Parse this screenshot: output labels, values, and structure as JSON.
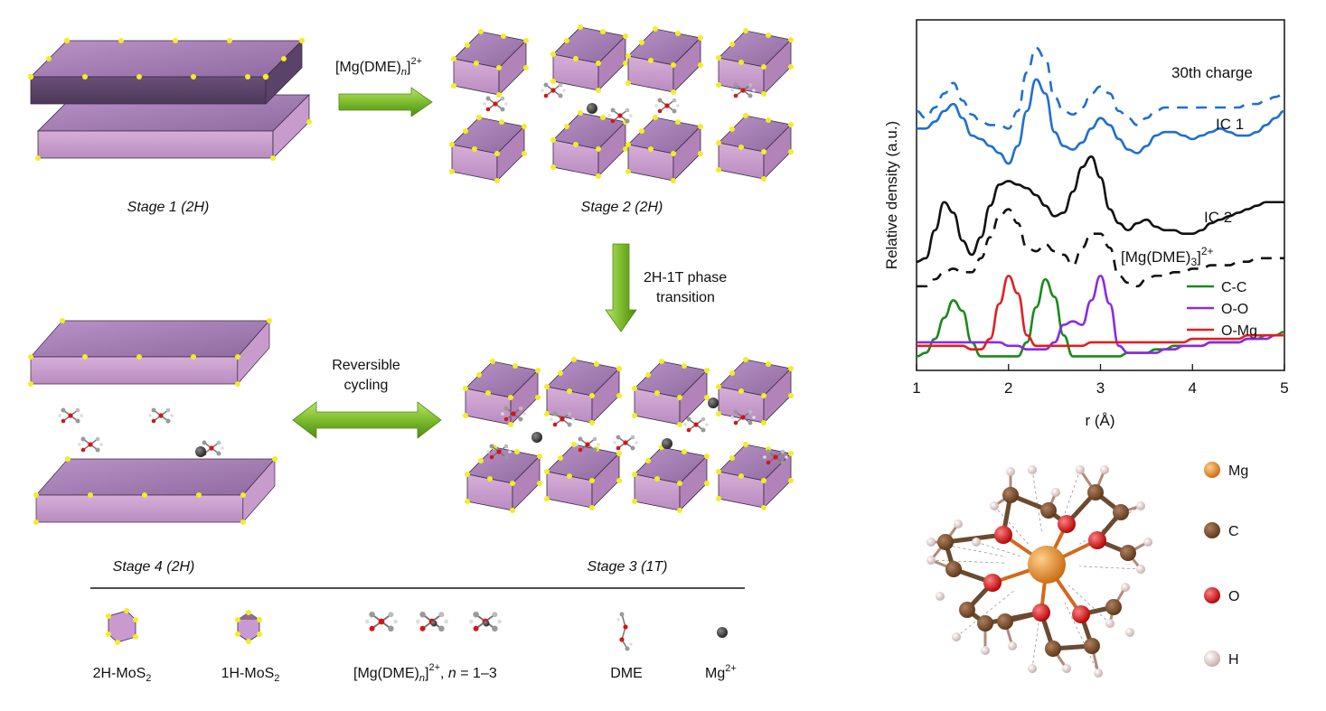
{
  "diagram": {
    "arrow1_label_main": "[Mg(DME)",
    "arrow1_label_sub": "n",
    "arrow1_label_sup": "2+",
    "arrow2_label_line1": "2H-1T phase",
    "arrow2_label_line2": "transition",
    "arrow3_label_line1": "Reversible",
    "arrow3_label_line2": "cycling",
    "stage1": "Stage 1 (2H)",
    "stage2": "Stage 2 (2H)",
    "stage3": "Stage 3 (1T)",
    "stage4": "Stage 4 (2H)"
  },
  "legend": {
    "mos2_2h_main": "2H-MoS",
    "mos2_2h_sub": "2",
    "mos2_1h_main": "1H-MoS",
    "mos2_1h_sub": "2",
    "complex_main": "[Mg(DME)",
    "complex_sub": "n",
    "complex_sup": "2+",
    "complex_tail": ", ",
    "complex_n": "n",
    "complex_range": " = 1–3",
    "dme": "DME",
    "mg_main": "Mg",
    "mg_sup": "2+"
  },
  "chart_data": {
    "type": "line",
    "xlabel": "r (Å)",
    "ylabel": "Relative density (a.u.)",
    "xlim": [
      1,
      5
    ],
    "xticks": [
      "1",
      "2",
      "3",
      "4",
      "5"
    ],
    "grid": false,
    "series": [
      {
        "name": "30th charge",
        "style": "dashed",
        "color": "#1f6fd1",
        "x": [
          1.0,
          1.1,
          1.2,
          1.3,
          1.4,
          1.5,
          1.6,
          1.7,
          1.8,
          1.9,
          2.0,
          2.1,
          2.2,
          2.3,
          2.4,
          2.5,
          2.6,
          2.7,
          2.8,
          2.9,
          3.0,
          3.1,
          3.2,
          3.3,
          3.4,
          3.5,
          3.6,
          3.7,
          3.8,
          3.9,
          4.0,
          4.1,
          4.2,
          4.3,
          4.4,
          4.5,
          4.6,
          4.7,
          4.8,
          4.9,
          5.0
        ],
        "y": [
          0.74,
          0.72,
          0.75,
          0.79,
          0.82,
          0.77,
          0.73,
          0.71,
          0.7,
          0.7,
          0.69,
          0.74,
          0.85,
          0.92,
          0.89,
          0.78,
          0.74,
          0.73,
          0.75,
          0.79,
          0.81,
          0.79,
          0.74,
          0.72,
          0.7,
          0.72,
          0.74,
          0.75,
          0.75,
          0.75,
          0.75,
          0.75,
          0.75,
          0.75,
          0.75,
          0.75,
          0.76,
          0.76,
          0.77,
          0.78,
          0.79
        ]
      },
      {
        "name": "IC 1",
        "style": "solid",
        "color": "#1f6fd1",
        "x": [
          1.0,
          1.1,
          1.2,
          1.3,
          1.4,
          1.5,
          1.6,
          1.7,
          1.8,
          1.9,
          2.0,
          2.1,
          2.2,
          2.3,
          2.4,
          2.5,
          2.6,
          2.7,
          2.8,
          2.9,
          3.0,
          3.1,
          3.2,
          3.3,
          3.4,
          3.5,
          3.6,
          3.7,
          3.8,
          3.9,
          4.0,
          4.1,
          4.2,
          4.3,
          4.4,
          4.5,
          4.6,
          4.7,
          4.8,
          4.9,
          5.0
        ],
        "y": [
          0.69,
          0.69,
          0.71,
          0.74,
          0.76,
          0.72,
          0.67,
          0.66,
          0.64,
          0.62,
          0.59,
          0.64,
          0.74,
          0.83,
          0.79,
          0.68,
          0.64,
          0.63,
          0.65,
          0.69,
          0.72,
          0.7,
          0.66,
          0.63,
          0.62,
          0.64,
          0.67,
          0.68,
          0.68,
          0.67,
          0.66,
          0.67,
          0.68,
          0.69,
          0.68,
          0.67,
          0.67,
          0.68,
          0.7,
          0.72,
          0.74
        ]
      },
      {
        "name": "IC 2",
        "style": "solid",
        "color": "#111111",
        "x": [
          1.0,
          1.1,
          1.2,
          1.3,
          1.4,
          1.5,
          1.6,
          1.7,
          1.8,
          1.9,
          2.0,
          2.1,
          2.2,
          2.3,
          2.4,
          2.5,
          2.6,
          2.7,
          2.8,
          2.9,
          3.0,
          3.1,
          3.2,
          3.3,
          3.4,
          3.5,
          3.6,
          3.7,
          3.8,
          3.9,
          4.0,
          4.1,
          4.2,
          4.3,
          4.4,
          4.5,
          4.6,
          4.7,
          4.8,
          4.9,
          5.0
        ],
        "y": [
          0.31,
          0.32,
          0.4,
          0.48,
          0.45,
          0.37,
          0.33,
          0.38,
          0.47,
          0.53,
          0.54,
          0.53,
          0.52,
          0.5,
          0.47,
          0.44,
          0.45,
          0.51,
          0.58,
          0.61,
          0.55,
          0.46,
          0.42,
          0.4,
          0.42,
          0.43,
          0.41,
          0.4,
          0.4,
          0.39,
          0.39,
          0.4,
          0.42,
          0.43,
          0.44,
          0.45,
          0.46,
          0.47,
          0.48,
          0.48,
          0.48
        ]
      },
      {
        "name": "[Mg(DME)3]2+",
        "style": "dashed",
        "color": "#111111",
        "x": [
          1.0,
          1.1,
          1.2,
          1.3,
          1.4,
          1.5,
          1.6,
          1.7,
          1.8,
          1.9,
          2.0,
          2.1,
          2.2,
          2.3,
          2.4,
          2.5,
          2.6,
          2.7,
          2.8,
          2.9,
          3.0,
          3.1,
          3.2,
          3.3,
          3.4,
          3.5,
          3.6,
          3.7,
          3.8,
          3.9,
          4.0,
          4.1,
          4.2,
          4.3,
          4.4,
          4.5,
          4.6,
          4.7,
          4.8,
          4.9,
          5.0
        ],
        "y": [
          0.24,
          0.24,
          0.26,
          0.28,
          0.29,
          0.28,
          0.28,
          0.32,
          0.38,
          0.44,
          0.46,
          0.42,
          0.35,
          0.34,
          0.36,
          0.34,
          0.33,
          0.3,
          0.35,
          0.39,
          0.39,
          0.35,
          0.27,
          0.25,
          0.24,
          0.26,
          0.27,
          0.27,
          0.28,
          0.28,
          0.29,
          0.29,
          0.3,
          0.3,
          0.3,
          0.31,
          0.31,
          0.32,
          0.32,
          0.32,
          0.32
        ]
      },
      {
        "name": "C-C",
        "style": "solid",
        "color": "#1a8a1a",
        "x": [
          1.0,
          1.1,
          1.2,
          1.3,
          1.4,
          1.5,
          1.6,
          1.7,
          1.8,
          1.9,
          2.0,
          2.1,
          2.2,
          2.3,
          2.4,
          2.5,
          2.6,
          2.7,
          2.8,
          2.9,
          3.0,
          3.1,
          3.2,
          3.3,
          3.4,
          3.5,
          3.6,
          3.7,
          3.8,
          3.9,
          4.0,
          4.1,
          4.2,
          4.3,
          4.4,
          4.5,
          4.6,
          4.7,
          4.8,
          4.9,
          5.0
        ],
        "y": [
          0.04,
          0.05,
          0.09,
          0.15,
          0.2,
          0.17,
          0.08,
          0.04,
          0.04,
          0.04,
          0.04,
          0.04,
          0.08,
          0.18,
          0.26,
          0.21,
          0.1,
          0.04,
          0.04,
          0.04,
          0.04,
          0.04,
          0.04,
          0.05,
          0.05,
          0.05,
          0.06,
          0.06,
          0.07,
          0.07,
          0.07,
          0.07,
          0.08,
          0.08,
          0.08,
          0.08,
          0.09,
          0.09,
          0.1,
          0.1,
          0.11
        ]
      },
      {
        "name": "O-O",
        "style": "solid",
        "color": "#8a2be2",
        "x": [
          1.0,
          1.1,
          1.2,
          1.3,
          1.4,
          1.5,
          1.6,
          1.7,
          1.8,
          1.9,
          2.0,
          2.1,
          2.2,
          2.3,
          2.4,
          2.5,
          2.6,
          2.7,
          2.8,
          2.9,
          3.0,
          3.1,
          3.2,
          3.3,
          3.4,
          3.5,
          3.6,
          3.7,
          3.8,
          3.9,
          4.0,
          4.1,
          4.2,
          4.3,
          4.4,
          4.5,
          4.6,
          4.7,
          4.8,
          4.9,
          5.0
        ],
        "y": [
          0.08,
          0.08,
          0.08,
          0.08,
          0.08,
          0.08,
          0.08,
          0.08,
          0.08,
          0.08,
          0.07,
          0.07,
          0.06,
          0.06,
          0.06,
          0.08,
          0.13,
          0.14,
          0.13,
          0.2,
          0.27,
          0.19,
          0.07,
          0.05,
          0.05,
          0.05,
          0.05,
          0.06,
          0.06,
          0.07,
          0.07,
          0.07,
          0.08,
          0.08,
          0.08,
          0.08,
          0.09,
          0.09,
          0.09,
          0.1,
          0.1
        ]
      },
      {
        "name": "O-Mg",
        "style": "solid",
        "color": "#e02020",
        "x": [
          1.0,
          1.1,
          1.2,
          1.3,
          1.4,
          1.5,
          1.6,
          1.7,
          1.8,
          1.9,
          2.0,
          2.1,
          2.2,
          2.3,
          2.4,
          2.5,
          2.6,
          2.7,
          2.8,
          2.9,
          3.0,
          3.1,
          3.2,
          3.3,
          3.4,
          3.5,
          3.6,
          3.7,
          3.8,
          3.9,
          4.0,
          4.1,
          4.2,
          4.3,
          4.4,
          4.5,
          4.6,
          4.7,
          4.8,
          4.9,
          5.0
        ],
        "y": [
          0.07,
          0.07,
          0.07,
          0.07,
          0.07,
          0.07,
          0.06,
          0.06,
          0.09,
          0.19,
          0.27,
          0.22,
          0.1,
          0.07,
          0.07,
          0.07,
          0.07,
          0.07,
          0.07,
          0.08,
          0.08,
          0.08,
          0.08,
          0.08,
          0.08,
          0.08,
          0.08,
          0.08,
          0.08,
          0.08,
          0.09,
          0.09,
          0.09,
          0.09,
          0.09,
          0.09,
          0.1,
          0.1,
          0.1,
          0.1,
          0.1
        ]
      }
    ],
    "labels": {
      "charge": "30th charge",
      "ic1": "IC 1",
      "ic2": "IC 2",
      "complex_main": "[Mg(DME)",
      "complex_sub": "3",
      "complex_close": "]",
      "complex_sup": "2+"
    },
    "legend_entries": [
      {
        "label": "C-C",
        "color": "#1a8a1a"
      },
      {
        "label": "O-O",
        "color": "#8a2be2"
      },
      {
        "label": "O-Mg",
        "color": "#e02020"
      }
    ]
  },
  "molecule_legend": [
    {
      "label": "Mg",
      "color": "#e8861e"
    },
    {
      "label": "C",
      "color": "#7a4e2d"
    },
    {
      "label": "O",
      "color": "#e01515"
    },
    {
      "label": "H",
      "color": "#e8d2d2"
    }
  ]
}
